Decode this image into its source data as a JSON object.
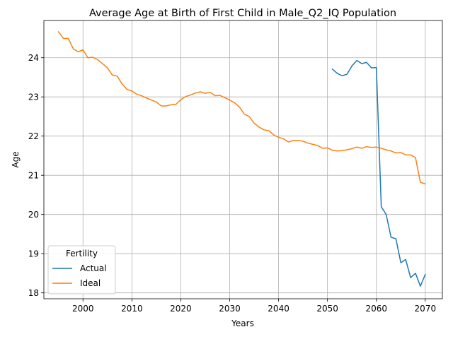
{
  "chart_data": {
    "type": "line",
    "title": "Average Age at Birth of First Child in Male_Q2_IQ Population",
    "xlabel": "Years",
    "ylabel": "Age",
    "xlim": [
      1992.0,
      2073.5
    ],
    "ylim": [
      17.85,
      24.95
    ],
    "xticks": [
      2000,
      2010,
      2020,
      2030,
      2040,
      2050,
      2060,
      2070
    ],
    "yticks": [
      18,
      19,
      20,
      21,
      22,
      23,
      24
    ],
    "grid": true,
    "legend": {
      "title": "Fertility",
      "position": "lower-left"
    },
    "colors": {
      "Actual": "#1f77b4",
      "Ideal": "#ff7f0e"
    },
    "series": [
      {
        "name": "Actual",
        "x": [
          2051,
          2052,
          2053,
          2054,
          2055,
          2056,
          2057,
          2058,
          2059,
          2060,
          2061,
          2062,
          2063,
          2064,
          2065,
          2066,
          2067,
          2068,
          2069,
          2070
        ],
        "y": [
          23.71,
          23.6,
          23.54,
          23.58,
          23.79,
          23.93,
          23.85,
          23.88,
          23.74,
          23.75,
          20.2,
          20.0,
          19.42,
          19.38,
          18.77,
          18.85,
          18.39,
          18.5,
          18.17,
          18.47
        ]
      },
      {
        "name": "Ideal",
        "x": [
          1995,
          1996,
          1997,
          1998,
          1999,
          2000,
          2001,
          2002,
          2003,
          2004,
          2005,
          2006,
          2007,
          2008,
          2009,
          2010,
          2011,
          2012,
          2013,
          2014,
          2015,
          2016,
          2017,
          2018,
          2019,
          2020,
          2021,
          2022,
          2023,
          2024,
          2025,
          2026,
          2027,
          2028,
          2029,
          2030,
          2031,
          2032,
          2033,
          2034,
          2035,
          2036,
          2037,
          2038,
          2039,
          2040,
          2041,
          2042,
          2043,
          2044,
          2045,
          2046,
          2047,
          2048,
          2049,
          2050,
          2051,
          2052,
          2053,
          2054,
          2055,
          2056,
          2057,
          2058,
          2059,
          2060,
          2061,
          2062,
          2063,
          2064,
          2065,
          2066,
          2067,
          2068,
          2069,
          2070
        ],
        "y": [
          24.66,
          24.49,
          24.49,
          24.23,
          24.15,
          24.2,
          24.0,
          24.01,
          23.95,
          23.85,
          23.74,
          23.56,
          23.53,
          23.33,
          23.19,
          23.15,
          23.07,
          23.03,
          22.97,
          22.92,
          22.87,
          22.77,
          22.77,
          22.8,
          22.81,
          22.93,
          23.01,
          23.05,
          23.1,
          23.13,
          23.09,
          23.12,
          23.03,
          23.04,
          22.98,
          22.92,
          22.85,
          22.74,
          22.56,
          22.5,
          22.33,
          22.23,
          22.16,
          22.14,
          22.03,
          21.97,
          21.93,
          21.85,
          21.89,
          21.89,
          21.87,
          21.82,
          21.79,
          21.76,
          21.69,
          21.7,
          21.64,
          21.62,
          21.63,
          21.65,
          21.68,
          21.72,
          21.69,
          21.73,
          21.71,
          21.72,
          21.69,
          21.65,
          21.62,
          21.57,
          21.58,
          21.52,
          21.52,
          21.45,
          20.82,
          20.78
        ]
      }
    ]
  }
}
